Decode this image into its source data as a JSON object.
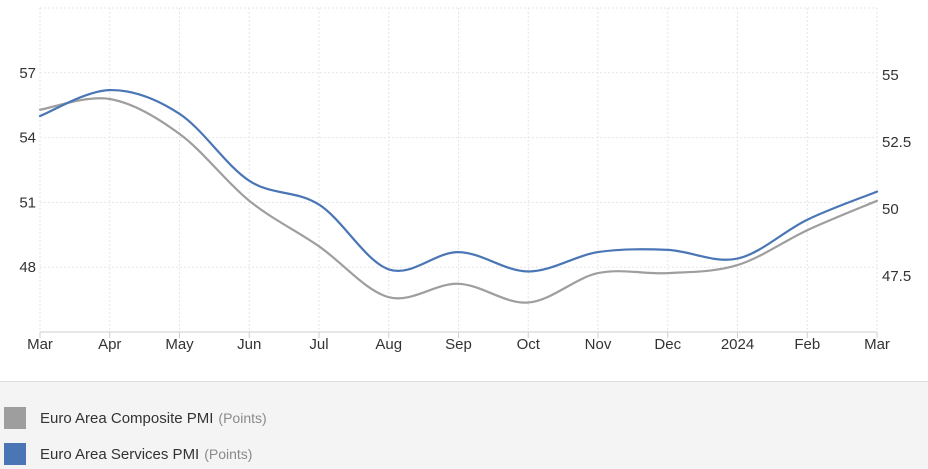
{
  "chart_data": {
    "type": "line",
    "categories": [
      "Mar",
      "Apr",
      "May",
      "Jun",
      "Jul",
      "Aug",
      "Sep",
      "Oct",
      "Nov",
      "Dec",
      "2024",
      "Feb",
      "Mar"
    ],
    "y_left": {
      "ticks": [
        48,
        51,
        54,
        57
      ],
      "range": [
        45.0,
        60.0
      ]
    },
    "y_right": {
      "ticks": [
        47.5,
        50,
        52.5,
        55
      ],
      "range": [
        45.4,
        57.5
      ]
    },
    "series": [
      {
        "name": "Euro Area Composite PMI",
        "unit": "(Points)",
        "axis": "right",
        "color": "#9e9e9e",
        "values": [
          53.7,
          54.1,
          52.8,
          50.3,
          48.6,
          46.7,
          47.2,
          46.5,
          47.6,
          47.6,
          47.9,
          49.2,
          50.3
        ]
      },
      {
        "name": "Euro Area Services PMI",
        "unit": "(Points)",
        "axis": "left",
        "color": "#4a76b6",
        "values": [
          55.0,
          56.2,
          55.1,
          52.0,
          50.9,
          47.9,
          48.7,
          47.8,
          48.7,
          48.8,
          48.4,
          50.2,
          51.5
        ]
      }
    ],
    "grid": true,
    "legend_position": "bottom"
  }
}
